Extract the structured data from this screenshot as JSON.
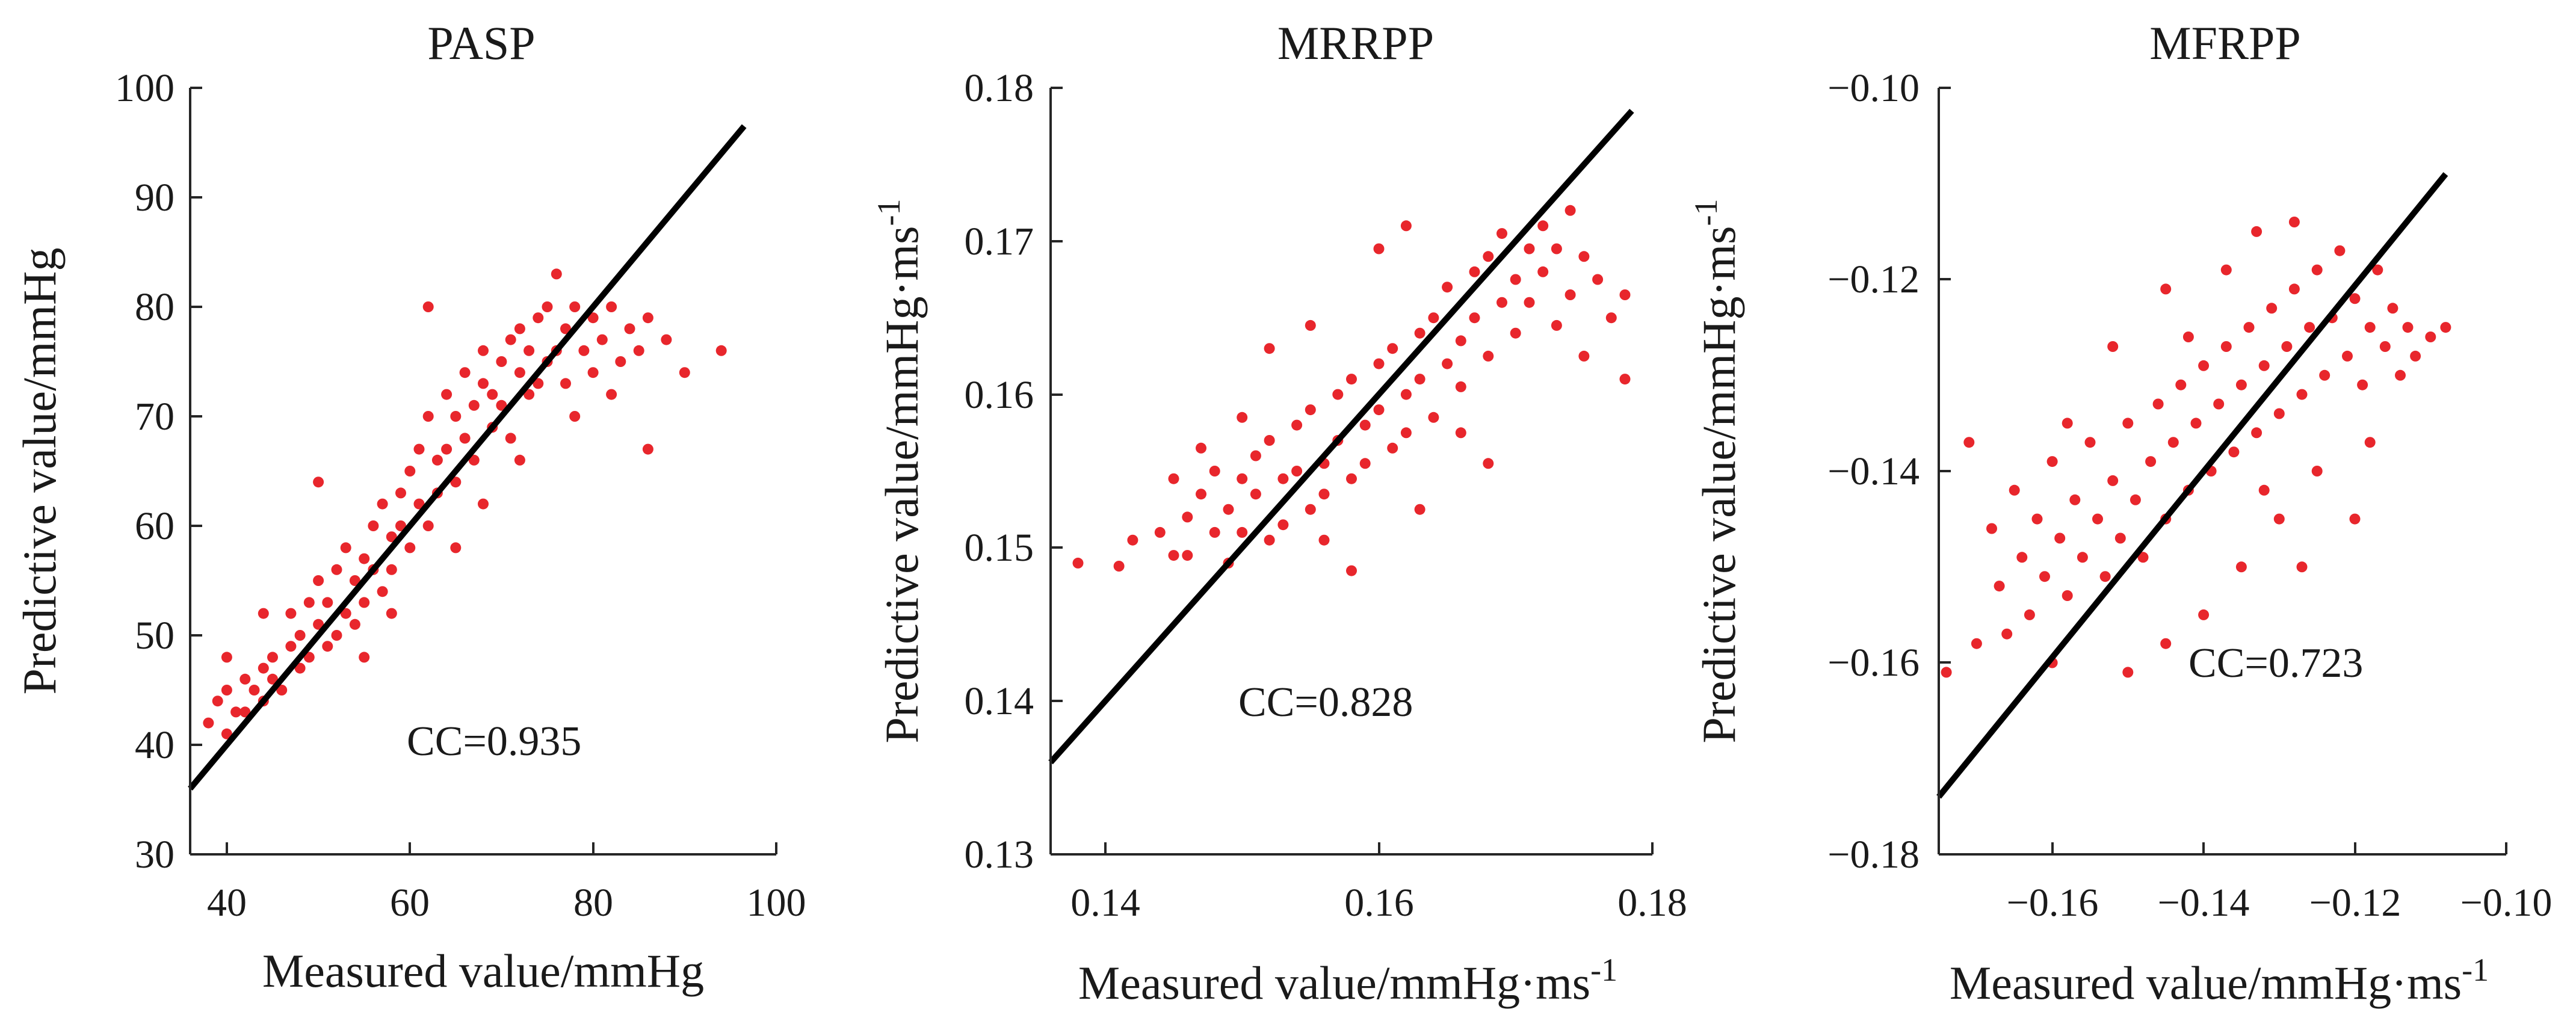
{
  "chart_data": [
    {
      "type": "scatter",
      "title": "PASP",
      "xlabel": "Measured value/mmHg",
      "ylabel": "Predictive value/mmHg",
      "xlim": [
        36,
        100
      ],
      "ylim": [
        30,
        100
      ],
      "xticks": [
        40,
        60,
        80,
        100
      ],
      "yticks": [
        30,
        40,
        50,
        60,
        70,
        80,
        90,
        100
      ],
      "xtick_labels": [
        "40",
        "60",
        "80",
        "100"
      ],
      "ytick_labels": [
        "30",
        "40",
        "50",
        "60",
        "70",
        "80",
        "90",
        "100"
      ],
      "annotation": "CC=0.935",
      "annotation_at": [
        53,
        40
      ],
      "fit_line": {
        "x": [
          36,
          96.5
        ],
        "y": [
          36,
          96.5
        ]
      },
      "points_color": "#e8262c",
      "points": [
        [
          38,
          42
        ],
        [
          39,
          44
        ],
        [
          40,
          41
        ],
        [
          40,
          45
        ],
        [
          41,
          43
        ],
        [
          42,
          46
        ],
        [
          42,
          43
        ],
        [
          43,
          45
        ],
        [
          44,
          47
        ],
        [
          44,
          44
        ],
        [
          45,
          48
        ],
        [
          45,
          46
        ],
        [
          46,
          45
        ],
        [
          47,
          49
        ],
        [
          47,
          52
        ],
        [
          48,
          47
        ],
        [
          48,
          50
        ],
        [
          49,
          53
        ],
        [
          49,
          48
        ],
        [
          50,
          51
        ],
        [
          50,
          55
        ],
        [
          51,
          49
        ],
        [
          51,
          53
        ],
        [
          52,
          50
        ],
        [
          52,
          56
        ],
        [
          53,
          52
        ],
        [
          53,
          58
        ],
        [
          54,
          51
        ],
        [
          54,
          55
        ],
        [
          55,
          57
        ],
        [
          55,
          53
        ],
        [
          56,
          60
        ],
        [
          56,
          56
        ],
        [
          57,
          54
        ],
        [
          57,
          62
        ],
        [
          58,
          59
        ],
        [
          58,
          56
        ],
        [
          59,
          63
        ],
        [
          59,
          60
        ],
        [
          60,
          58
        ],
        [
          60,
          65
        ],
        [
          61,
          62
        ],
        [
          61,
          67
        ],
        [
          62,
          60
        ],
        [
          62,
          70
        ],
        [
          63,
          66
        ],
        [
          63,
          63
        ],
        [
          64,
          72
        ],
        [
          64,
          67
        ],
        [
          65,
          64
        ],
        [
          65,
          70
        ],
        [
          66,
          74
        ],
        [
          66,
          68
        ],
        [
          67,
          71
        ],
        [
          67,
          66
        ],
        [
          68,
          73
        ],
        [
          68,
          76
        ],
        [
          69,
          69
        ],
        [
          69,
          72
        ],
        [
          70,
          75
        ],
        [
          70,
          71
        ],
        [
          71,
          77
        ],
        [
          71,
          68
        ],
        [
          72,
          74
        ],
        [
          72,
          78
        ],
        [
          73,
          72
        ],
        [
          73,
          76
        ],
        [
          74,
          79
        ],
        [
          74,
          73
        ],
        [
          75,
          75
        ],
        [
          75,
          80
        ],
        [
          76,
          76
        ],
        [
          77,
          78
        ],
        [
          77,
          73
        ],
        [
          78,
          80
        ],
        [
          79,
          76
        ],
        [
          80,
          79
        ],
        [
          80,
          74
        ],
        [
          81,
          77
        ],
        [
          82,
          80
        ],
        [
          83,
          75
        ],
        [
          84,
          78
        ],
        [
          85,
          76
        ],
        [
          86,
          79
        ],
        [
          88,
          77
        ],
        [
          90,
          74
        ],
        [
          94,
          76
        ],
        [
          62,
          80
        ],
        [
          50,
          64
        ],
        [
          44,
          52
        ],
        [
          55,
          48
        ],
        [
          58,
          52
        ],
        [
          65,
          58
        ],
        [
          68,
          62
        ],
        [
          72,
          66
        ],
        [
          78,
          70
        ],
        [
          82,
          72
        ],
        [
          86,
          67
        ],
        [
          76,
          83
        ],
        [
          40,
          48
        ]
      ]
    },
    {
      "type": "scatter",
      "title": "MRRPP",
      "xlabel": "Measured value/mmHg·ms",
      "xlabel_sup": "-1",
      "ylabel": "Predictive value/mmHg·ms",
      "ylabel_sup": "-1",
      "xlim": [
        0.136,
        0.18
      ],
      "ylim": [
        0.13,
        0.18
      ],
      "xticks": [
        0.14,
        0.16,
        0.18
      ],
      "yticks": [
        0.13,
        0.14,
        0.15,
        0.16,
        0.17,
        0.18
      ],
      "xtick_labels": [
        "0.14",
        "0.16",
        "0.18"
      ],
      "ytick_labels": [
        "0.13",
        "0.14",
        "0.15",
        "0.16",
        "0.17",
        "0.18"
      ],
      "annotation": "CC=0.828",
      "annotation_at": [
        0.155,
        0.1385
      ],
      "fit_line": {
        "x": [
          0.136,
          0.1785
        ],
        "y": [
          0.136,
          0.1785
        ]
      },
      "points_color": "#e8262c",
      "points": [
        [
          0.138,
          0.149
        ],
        [
          0.141,
          0.1488
        ],
        [
          0.142,
          0.1505
        ],
        [
          0.144,
          0.151
        ],
        [
          0.145,
          0.1495
        ],
        [
          0.146,
          0.152
        ],
        [
          0.146,
          0.1495
        ],
        [
          0.147,
          0.1535
        ],
        [
          0.148,
          0.151
        ],
        [
          0.148,
          0.155
        ],
        [
          0.149,
          0.1525
        ],
        [
          0.149,
          0.149
        ],
        [
          0.15,
          0.1545
        ],
        [
          0.15,
          0.151
        ],
        [
          0.151,
          0.156
        ],
        [
          0.151,
          0.1535
        ],
        [
          0.152,
          0.1505
        ],
        [
          0.152,
          0.157
        ],
        [
          0.153,
          0.1545
        ],
        [
          0.153,
          0.1515
        ],
        [
          0.154,
          0.158
        ],
        [
          0.154,
          0.155
        ],
        [
          0.155,
          0.1525
        ],
        [
          0.155,
          0.159
        ],
        [
          0.156,
          0.1555
        ],
        [
          0.156,
          0.1535
        ],
        [
          0.157,
          0.16
        ],
        [
          0.157,
          0.157
        ],
        [
          0.158,
          0.1545
        ],
        [
          0.158,
          0.161
        ],
        [
          0.159,
          0.158
        ],
        [
          0.159,
          0.1555
        ],
        [
          0.16,
          0.162
        ],
        [
          0.16,
          0.159
        ],
        [
          0.161,
          0.1565
        ],
        [
          0.161,
          0.163
        ],
        [
          0.162,
          0.16
        ],
        [
          0.162,
          0.1575
        ],
        [
          0.163,
          0.164
        ],
        [
          0.163,
          0.161
        ],
        [
          0.164,
          0.1585
        ],
        [
          0.164,
          0.165
        ],
        [
          0.165,
          0.162
        ],
        [
          0.165,
          0.167
        ],
        [
          0.166,
          0.1635
        ],
        [
          0.166,
          0.1605
        ],
        [
          0.167,
          0.168
        ],
        [
          0.167,
          0.165
        ],
        [
          0.168,
          0.1625
        ],
        [
          0.168,
          0.169
        ],
        [
          0.169,
          0.166
        ],
        [
          0.169,
          0.1705
        ],
        [
          0.17,
          0.1675
        ],
        [
          0.17,
          0.164
        ],
        [
          0.171,
          0.1695
        ],
        [
          0.171,
          0.166
        ],
        [
          0.172,
          0.171
        ],
        [
          0.172,
          0.168
        ],
        [
          0.173,
          0.1645
        ],
        [
          0.173,
          0.1695
        ],
        [
          0.174,
          0.172
        ],
        [
          0.174,
          0.1665
        ],
        [
          0.175,
          0.169
        ],
        [
          0.176,
          0.1675
        ],
        [
          0.177,
          0.165
        ],
        [
          0.178,
          0.1665
        ],
        [
          0.178,
          0.161
        ],
        [
          0.175,
          0.1625
        ],
        [
          0.168,
          0.1555
        ],
        [
          0.155,
          0.1645
        ],
        [
          0.152,
          0.163
        ],
        [
          0.158,
          0.1485
        ],
        [
          0.162,
          0.171
        ],
        [
          0.147,
          0.1565
        ],
        [
          0.163,
          0.1525
        ],
        [
          0.16,
          0.1695
        ],
        [
          0.15,
          0.1585
        ],
        [
          0.145,
          0.1545
        ],
        [
          0.156,
          0.1505
        ],
        [
          0.166,
          0.1575
        ]
      ]
    },
    {
      "type": "scatter",
      "title": "MFRPP",
      "xlabel": "Measured value/mmHg·ms",
      "xlabel_sup": "-1",
      "ylabel": "Predictive value/mmHg·ms",
      "ylabel_sup": "-1",
      "xlim": [
        -0.175,
        -0.1
      ],
      "ylim": [
        -0.18,
        -0.1
      ],
      "xticks": [
        -0.16,
        -0.14,
        -0.12,
        -0.1
      ],
      "yticks": [
        -0.18,
        -0.16,
        -0.14,
        -0.12,
        -0.1
      ],
      "xtick_labels": [
        "−0.16",
        "−0.14",
        "−0.12",
        "−0.10"
      ],
      "ytick_labels": [
        "−0.18",
        "−0.16",
        "−0.14",
        "−0.12",
        "−0.10"
      ],
      "annotation": "CC=0.723",
      "annotation_at": [
        -0.127,
        -0.1605
      ],
      "fit_line": {
        "x": [
          -0.175,
          -0.108
        ],
        "y": [
          -0.174,
          -0.109
        ]
      },
      "points_color": "#e8262c",
      "points": [
        [
          -0.174,
          -0.161
        ],
        [
          -0.171,
          -0.137
        ],
        [
          -0.17,
          -0.158
        ],
        [
          -0.168,
          -0.146
        ],
        [
          -0.167,
          -0.152
        ],
        [
          -0.166,
          -0.157
        ],
        [
          -0.165,
          -0.142
        ],
        [
          -0.164,
          -0.149
        ],
        [
          -0.163,
          -0.155
        ],
        [
          -0.162,
          -0.145
        ],
        [
          -0.161,
          -0.151
        ],
        [
          -0.16,
          -0.139
        ],
        [
          -0.159,
          -0.147
        ],
        [
          -0.158,
          -0.153
        ],
        [
          -0.157,
          -0.143
        ],
        [
          -0.156,
          -0.149
        ],
        [
          -0.155,
          -0.137
        ],
        [
          -0.154,
          -0.145
        ],
        [
          -0.153,
          -0.151
        ],
        [
          -0.152,
          -0.141
        ],
        [
          -0.151,
          -0.147
        ],
        [
          -0.15,
          -0.135
        ],
        [
          -0.149,
          -0.143
        ],
        [
          -0.148,
          -0.149
        ],
        [
          -0.147,
          -0.139
        ],
        [
          -0.146,
          -0.133
        ],
        [
          -0.145,
          -0.145
        ],
        [
          -0.144,
          -0.137
        ],
        [
          -0.143,
          -0.131
        ],
        [
          -0.142,
          -0.142
        ],
        [
          -0.141,
          -0.135
        ],
        [
          -0.14,
          -0.129
        ],
        [
          -0.139,
          -0.14
        ],
        [
          -0.138,
          -0.133
        ],
        [
          -0.137,
          -0.127
        ],
        [
          -0.136,
          -0.138
        ],
        [
          -0.135,
          -0.131
        ],
        [
          -0.134,
          -0.125
        ],
        [
          -0.133,
          -0.136
        ],
        [
          -0.132,
          -0.129
        ],
        [
          -0.131,
          -0.123
        ],
        [
          -0.13,
          -0.134
        ],
        [
          -0.129,
          -0.127
        ],
        [
          -0.128,
          -0.121
        ],
        [
          -0.127,
          -0.132
        ],
        [
          -0.126,
          -0.125
        ],
        [
          -0.125,
          -0.119
        ],
        [
          -0.124,
          -0.13
        ],
        [
          -0.123,
          -0.124
        ],
        [
          -0.122,
          -0.117
        ],
        [
          -0.121,
          -0.128
        ],
        [
          -0.12,
          -0.122
        ],
        [
          -0.119,
          -0.131
        ],
        [
          -0.118,
          -0.125
        ],
        [
          -0.117,
          -0.119
        ],
        [
          -0.116,
          -0.127
        ],
        [
          -0.115,
          -0.123
        ],
        [
          -0.114,
          -0.13
        ],
        [
          -0.113,
          -0.125
        ],
        [
          -0.112,
          -0.128
        ],
        [
          -0.11,
          -0.126
        ],
        [
          -0.108,
          -0.125
        ],
        [
          -0.128,
          -0.114
        ],
        [
          -0.133,
          -0.115
        ],
        [
          -0.14,
          -0.155
        ],
        [
          -0.135,
          -0.15
        ],
        [
          -0.15,
          -0.161
        ],
        [
          -0.145,
          -0.158
        ],
        [
          -0.13,
          -0.145
        ],
        [
          -0.125,
          -0.14
        ],
        [
          -0.158,
          -0.135
        ],
        [
          -0.152,
          -0.127
        ],
        [
          -0.145,
          -0.121
        ],
        [
          -0.12,
          -0.145
        ],
        [
          -0.127,
          -0.15
        ],
        [
          -0.137,
          -0.119
        ],
        [
          -0.16,
          -0.16
        ],
        [
          -0.142,
          -0.126
        ],
        [
          -0.118,
          -0.137
        ],
        [
          -0.132,
          -0.142
        ]
      ]
    }
  ]
}
